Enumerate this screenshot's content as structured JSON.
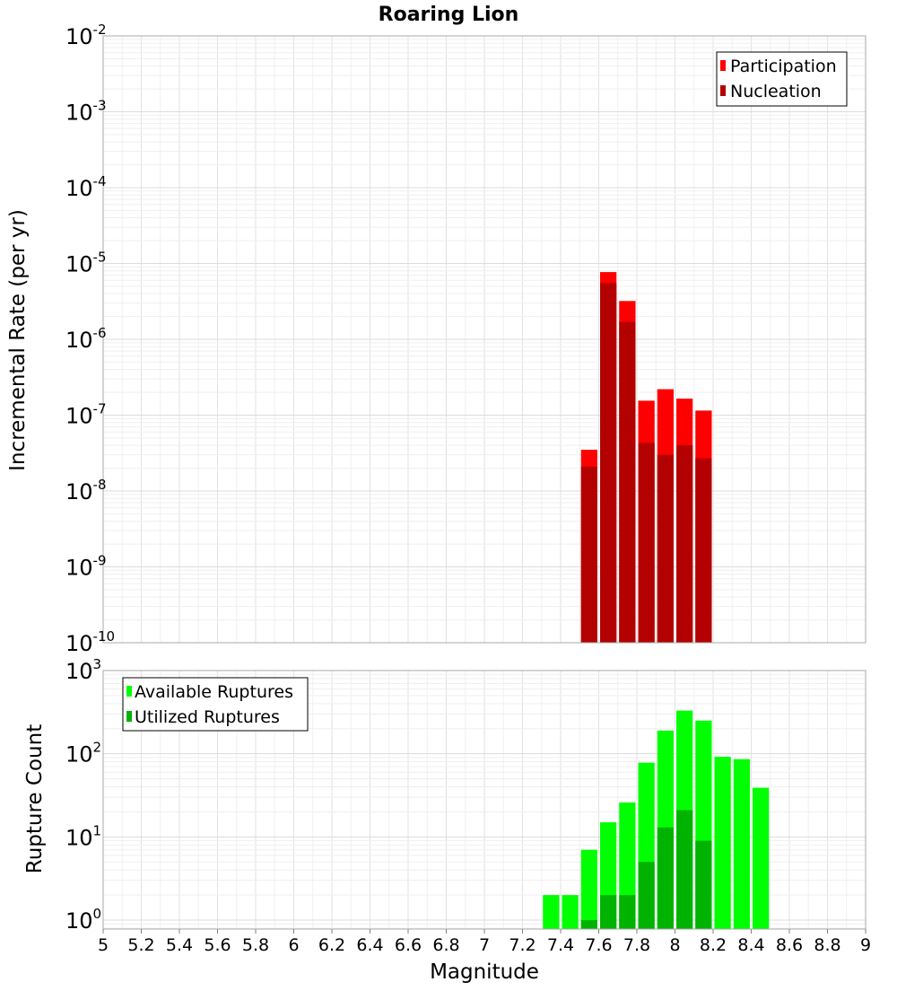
{
  "chart_data": [
    {
      "type": "bar",
      "title": "Roaring Lion",
      "ylabel": "Incremental Rate (per yr)",
      "xlabel": "",
      "xlim": [
        5,
        9
      ],
      "ylim": [
        1e-10,
        0.01
      ],
      "yscale": "log",
      "y_tick_mantissa": "10",
      "y_tick_exponents": [
        "-10",
        "-9",
        "-8",
        "-7",
        "-6",
        "-5",
        "-4",
        "-3",
        "-2"
      ],
      "legend": {
        "position": "top-right",
        "entries": [
          "Participation",
          "Nucleation"
        ]
      },
      "colors": {
        "Participation": "#ff0000",
        "Nucleation": "#b30000"
      },
      "bin_width": 0.1,
      "x": [
        7.55,
        7.65,
        7.75,
        7.85,
        7.95,
        8.05,
        8.15
      ],
      "series": [
        {
          "name": "Participation",
          "values": [
            3.5e-08,
            7.7e-06,
            3.2e-06,
            1.55e-07,
            2.2e-07,
            1.65e-07,
            1.15e-07
          ]
        },
        {
          "name": "Nucleation",
          "values": [
            2.1e-08,
            5.5e-06,
            1.7e-06,
            4.3e-08,
            3e-08,
            4e-08,
            2.7e-08
          ]
        }
      ]
    },
    {
      "type": "bar",
      "title": "",
      "ylabel": "Rupture Count",
      "xlabel": "Magnitude",
      "xlim": [
        5,
        9
      ],
      "ylim": [
        0.78,
        1000
      ],
      "yscale": "log",
      "y_tick_mantissa": "10",
      "y_tick_exponents": [
        "0",
        "1",
        "2",
        "3"
      ],
      "x_tick_labels": [
        "5",
        "5.2",
        "5.4",
        "5.6",
        "5.8",
        "6",
        "6.2",
        "6.4",
        "6.6",
        "6.8",
        "7",
        "7.2",
        "7.4",
        "7.6",
        "7.8",
        "8",
        "8.2",
        "8.4",
        "8.6",
        "8.8",
        "9"
      ],
      "legend": {
        "position": "top-left",
        "entries": [
          "Available Ruptures",
          "Utilized Ruptures"
        ]
      },
      "colors": {
        "Available Ruptures": "#00ff00",
        "Utilized Ruptures": "#00b300"
      },
      "bin_width": 0.1,
      "x": [
        7.35,
        7.45,
        7.55,
        7.65,
        7.75,
        7.85,
        7.95,
        8.05,
        8.15,
        8.25,
        8.35,
        8.45
      ],
      "series": [
        {
          "name": "Available Ruptures",
          "values": [
            2,
            2,
            7,
            15,
            26,
            78,
            190,
            330,
            250,
            92,
            86,
            39
          ]
        },
        {
          "name": "Utilized Ruptures",
          "values": [
            0,
            0,
            1,
            2,
            2,
            5,
            13,
            21,
            9,
            0,
            0,
            0
          ]
        }
      ]
    }
  ]
}
